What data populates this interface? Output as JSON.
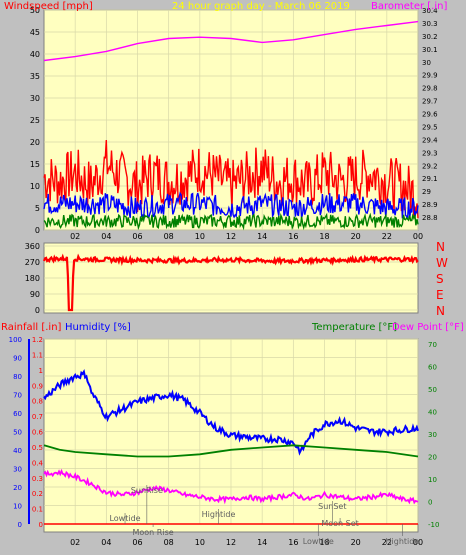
{
  "colors": {
    "background": "#c0c0c0",
    "plot_background": "#ffffc0",
    "grid": "#d8d8a8",
    "wind_speed": "#ff0000",
    "wind_avg": "#0000ff",
    "wind_low": "#008000",
    "barometer": "#ff00ff",
    "humidity": "#0000ff",
    "temperature": "#008000",
    "dew_point": "#ff00ff",
    "rainfall": "#ff0000",
    "title": "#ffff00",
    "annotation": "#606060"
  },
  "chart_data": [
    {
      "type": "line",
      "panel": "wind-barometer",
      "title": "24 hour graph day - March 06 2019",
      "left_axis_label": "Windspeed [mph]",
      "right_axis_label": "Barometer [.in]",
      "left_ylim": [
        0,
        50
      ],
      "left_ticks": [
        "0",
        "5",
        "10",
        "15",
        "20",
        "25",
        "30",
        "35",
        "40",
        "45",
        "50"
      ],
      "right_ylim": [
        28.7,
        30.4
      ],
      "right_ticks": [
        "28.8",
        "28.9",
        "29",
        "29.1",
        "29.2",
        "29.3",
        "29.4",
        "29.5",
        "29.6",
        "29.7",
        "29.8",
        "29.9",
        "30",
        "30.1",
        "30.2",
        "30.3",
        "30.4"
      ],
      "x_ticks": [
        "02",
        "04",
        "06",
        "08",
        "10",
        "12",
        "14",
        "16",
        "18",
        "20",
        "22",
        "00"
      ],
      "grid": true,
      "series": [
        {
          "key": "barometer",
          "axis": "right",
          "x": [
            0,
            2,
            4,
            6,
            8,
            10,
            12,
            14,
            16,
            18,
            20,
            22,
            24
          ],
          "y": [
            30.01,
            30.04,
            30.08,
            30.14,
            30.18,
            30.19,
            30.18,
            30.15,
            30.17,
            30.21,
            30.25,
            30.28,
            30.31
          ]
        },
        {
          "key": "wind_speed",
          "axis": "left",
          "x": [
            0,
            1,
            2,
            3,
            4,
            5,
            6,
            7,
            8,
            9,
            10,
            11,
            12,
            13,
            14,
            15,
            16,
            17,
            18,
            19,
            20,
            21,
            22,
            23,
            24
          ],
          "y": [
            12,
            11,
            13,
            10,
            15,
            12,
            10,
            13,
            11,
            12,
            14,
            12,
            10,
            12,
            14,
            11,
            12,
            10,
            13,
            11,
            12,
            13,
            11,
            10,
            8
          ]
        },
        {
          "key": "wind_avg",
          "axis": "left",
          "x": [
            0,
            2,
            4,
            6,
            8,
            10,
            12,
            14,
            16,
            18,
            20,
            22,
            24
          ],
          "y": [
            6,
            6,
            6,
            5,
            6,
            6,
            5,
            6,
            5,
            6,
            6,
            5,
            5
          ]
        },
        {
          "key": "wind_low",
          "axis": "left",
          "x": [
            0,
            2,
            4,
            6,
            8,
            10,
            12,
            14,
            16,
            18,
            20,
            22,
            24
          ],
          "y": [
            2,
            2,
            2,
            2,
            2,
            2,
            2,
            2,
            2,
            2,
            2,
            2,
            2
          ]
        }
      ]
    },
    {
      "type": "line",
      "panel": "wind-direction",
      "left_ylim": [
        0,
        360
      ],
      "left_ticks": [
        "0",
        "90",
        "180",
        "270",
        "360"
      ],
      "right_labels": [
        "N",
        "W",
        "S",
        "E",
        "N"
      ],
      "x_ticks": [],
      "series": [
        {
          "key": "wind_direction",
          "x": [
            0,
            1.5,
            1.6,
            1.8,
            1.9,
            3,
            6,
            9,
            12,
            15,
            18,
            21,
            24
          ],
          "y": [
            285,
            290,
            0,
            0,
            290,
            285,
            280,
            278,
            282,
            275,
            280,
            285,
            285
          ]
        }
      ]
    },
    {
      "type": "line",
      "panel": "humidity-temperature",
      "rain_label": "Rainfall [.in]",
      "humidity_label": "Humidity [%]",
      "temperature_label": "Temperature [°F]",
      "dew_point_label": "Dew Point [°F]",
      "humidity_ylim": [
        0,
        100
      ],
      "humidity_ticks": [
        "0",
        "10",
        "20",
        "30",
        "40",
        "50",
        "60",
        "70",
        "80",
        "90",
        "100"
      ],
      "rain_ylim": [
        0,
        1.2
      ],
      "rain_ticks": [
        "0",
        "0.1",
        "0.2",
        "0.3",
        "0.4",
        "0.5",
        "0.6",
        "0.7",
        "0.8",
        "0.9",
        "1",
        "1.1",
        "1.2"
      ],
      "temp_ylim": [
        -10,
        70
      ],
      "temp_ticks": [
        "-10",
        "0",
        "10",
        "20",
        "30",
        "40",
        "50",
        "60",
        "70"
      ],
      "x_ticks": [
        "02",
        "04",
        "06",
        "08",
        "10",
        "12",
        "14",
        "16",
        "18",
        "20",
        "22",
        "00"
      ],
      "grid": true,
      "series": [
        {
          "key": "humidity",
          "axis": "humidity",
          "x": [
            0,
            1,
            2,
            2.7,
            3,
            4,
            5,
            6,
            7,
            8,
            9,
            10,
            11,
            12,
            13,
            14,
            15,
            16,
            16.5,
            17,
            18,
            19,
            20,
            21,
            22,
            23,
            24
          ],
          "y": [
            68,
            75,
            80,
            81,
            72,
            58,
            62,
            66,
            68,
            70,
            67,
            60,
            52,
            48,
            47,
            46,
            46,
            44,
            39,
            47,
            54,
            56,
            52,
            50,
            50,
            51,
            52
          ]
        },
        {
          "key": "temperature",
          "axis": "temp",
          "x": [
            0,
            1,
            2,
            4,
            6,
            7,
            8,
            10,
            12,
            14,
            16,
            18,
            20,
            22,
            24
          ],
          "y": [
            25,
            23,
            22,
            21,
            20,
            20,
            20,
            21,
            23,
            24,
            25,
            24,
            23,
            22,
            20
          ]
        },
        {
          "key": "dew_point",
          "axis": "temp",
          "x": [
            0,
            1,
            2,
            3,
            4,
            5,
            6,
            7,
            8,
            9,
            10,
            11,
            12,
            13,
            14,
            15,
            16,
            17,
            18,
            19,
            20,
            21,
            22,
            23,
            24
          ],
          "y": [
            12,
            13,
            11,
            8,
            4,
            3,
            4,
            6,
            5,
            3,
            2,
            1,
            1,
            2,
            1,
            2,
            3,
            1,
            3,
            2,
            1,
            2,
            3,
            1,
            0
          ]
        },
        {
          "key": "rainfall",
          "axis": "rain",
          "x": [
            0,
            24
          ],
          "y": [
            0,
            0
          ]
        }
      ],
      "annotations": [
        {
          "key": "sunrise",
          "text": "SunRise",
          "x_hour": 6.6
        },
        {
          "key": "lowtide",
          "text": "Lowtide",
          "x_hour": 5.2
        },
        {
          "key": "moonrise",
          "text": "Moon Rise",
          "x_hour": 7.0
        },
        {
          "key": "hightide",
          "text": "Hightide",
          "x_hour": 11.2
        },
        {
          "key": "sunset",
          "text": "SunSet",
          "x_hour": 18.5
        },
        {
          "key": "moonset",
          "text": "Moon Set",
          "x_hour": 19.0
        },
        {
          "key": "lowtide2",
          "text": "Lowtide",
          "x_hour": 17.6
        },
        {
          "key": "hightide2",
          "text": "Hightide",
          "x_hour": 23.0
        }
      ]
    }
  ]
}
